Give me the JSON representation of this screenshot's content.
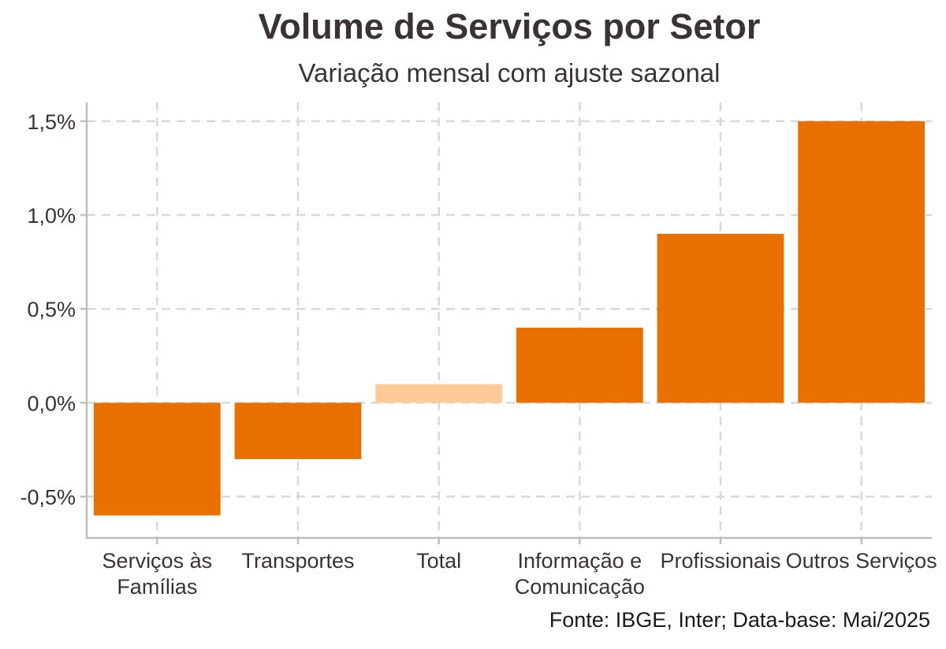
{
  "chart_data": {
    "type": "bar",
    "title": "Volume de Serviços por Setor",
    "subtitle": "Variação mensal com ajuste sazonal",
    "caption": "Fonte: IBGE, Inter; Data-base: Mai/2025",
    "xlabel": "",
    "ylabel": "",
    "categories": [
      "Serviços às Famílias",
      "Transportes",
      "Total",
      "Informação e Comunicação",
      "Profissionais",
      "Outros Serviços"
    ],
    "category_label_lines": [
      [
        "Serviços às",
        "Famílias"
      ],
      [
        "Transportes"
      ],
      [
        "Total"
      ],
      [
        "Informação e",
        "Comunicação"
      ],
      [
        "Profissionais"
      ],
      [
        "Outros Serviços"
      ]
    ],
    "values": [
      -0.6,
      -0.3,
      0.1,
      0.4,
      0.9,
      1.5
    ],
    "bar_colors": [
      "#e87000",
      "#e87000",
      "#ffc999",
      "#e87000",
      "#e87000",
      "#e87000"
    ],
    "ylim": [
      -0.72,
      1.6
    ],
    "yticks": [
      -0.5,
      0.0,
      0.5,
      1.0,
      1.5
    ],
    "ytick_labels": [
      "-0,5%",
      "0,0%",
      "0,5%",
      "1,0%",
      "1,5%"
    ],
    "grid": true,
    "legend": "none",
    "colors": {
      "bar": "#e87000",
      "highlight": "#ffc999",
      "grid": "#d9d9d9",
      "axis": "#bfbfbf",
      "text": "#3b3333"
    }
  }
}
